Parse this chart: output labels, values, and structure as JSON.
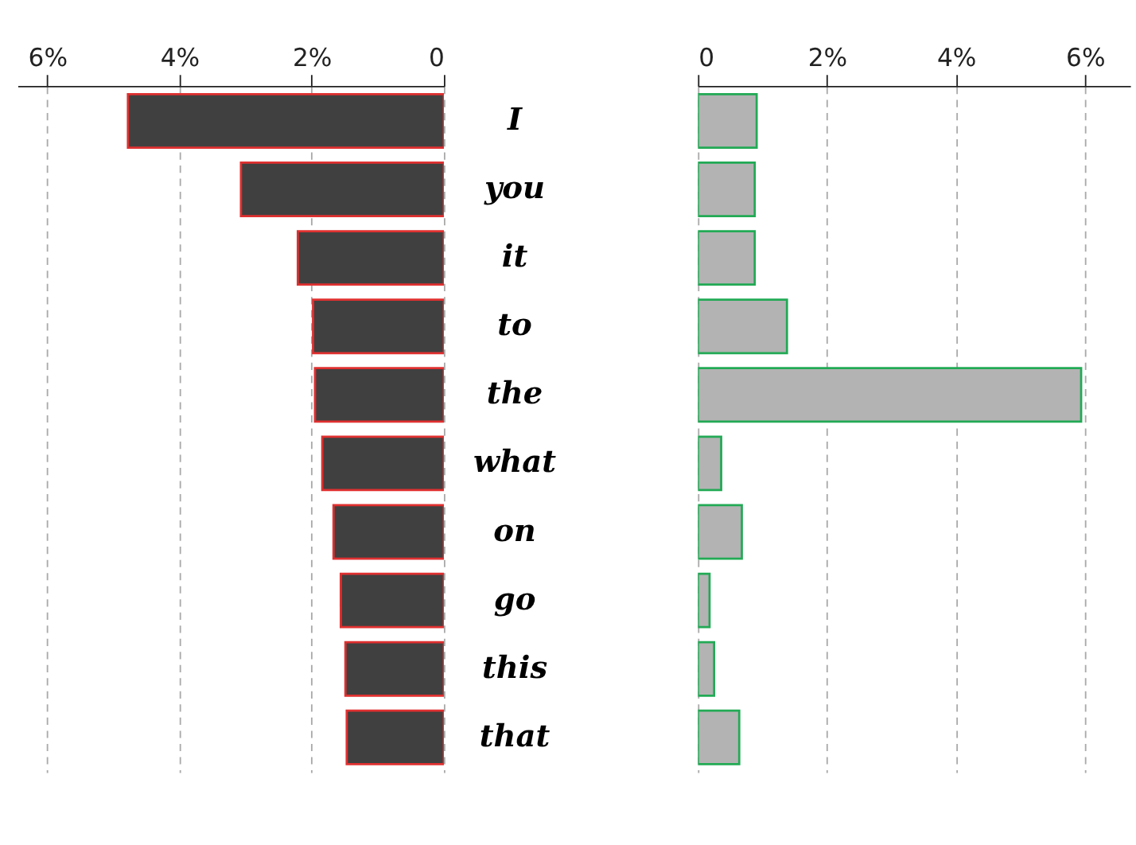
{
  "chart_data": [
    {
      "type": "bar",
      "orientation": "horizontal",
      "categories": [
        "I",
        "you",
        "it",
        "to",
        "the",
        "what",
        "on",
        "go",
        "this",
        "that"
      ],
      "values": [
        4.78,
        3.07,
        2.21,
        1.98,
        1.95,
        1.84,
        1.67,
        1.56,
        1.49,
        1.47
      ],
      "color": "#404040",
      "xlim": [
        6.45,
        0
      ],
      "xticks": [
        {
          "value": 6,
          "label": "6%"
        },
        {
          "value": 4,
          "label": "4%"
        },
        {
          "value": 2,
          "label": "2%"
        },
        0
      ],
      "grid": "x"
    },
    {
      "type": "bar",
      "orientation": "horizontal",
      "categories": [
        null,
        null,
        null,
        null,
        null,
        null,
        null,
        null,
        null,
        null
      ],
      "values": [
        0.91,
        0.88,
        0.88,
        1.38,
        5.94,
        0.36,
        0.68,
        0.18,
        0.25,
        0.64
      ],
      "color": "#b3b3b3",
      "xlim": [
        0,
        6.7
      ],
      "xticks": [
        0,
        {
          "value": 2,
          "label": "2%"
        },
        {
          "value": 4,
          "label": "4%"
        },
        {
          "value": 6,
          "label": "6%"
        }
      ],
      "grid": "x",
      "tick_labels": "x"
    }
  ]
}
